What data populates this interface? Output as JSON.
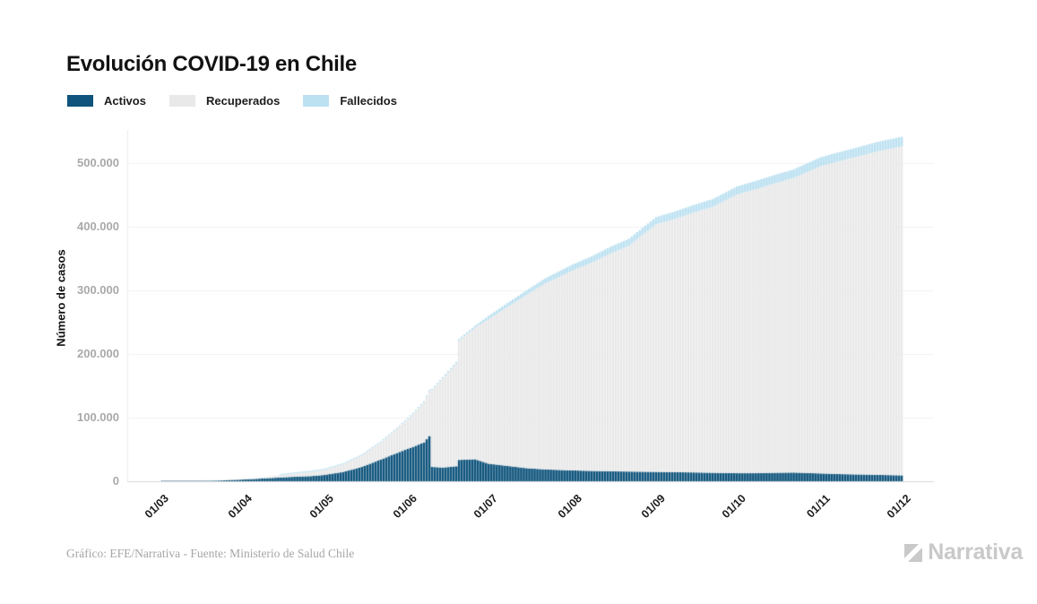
{
  "title": "Evolución COVID-19 en Chile",
  "legend": [
    {
      "key": "activos",
      "label": "Activos",
      "color": "#0f547c"
    },
    {
      "key": "recuperados",
      "label": "Recuperados",
      "color": "#e9e9e9"
    },
    {
      "key": "fallecidos",
      "label": "Fallecidos",
      "color": "#bce1f1"
    }
  ],
  "footer": {
    "credit": "Gráfico: EFE/Narrativa - Fuente: Ministerio de Salud Chile",
    "brand": "Narrativa",
    "brand_color": "#c9c9c9"
  },
  "chart_data": {
    "type": "bar",
    "stacked": true,
    "title": "Evolución COVID-19 en Chile",
    "xlabel": "",
    "ylabel": "Número de casos",
    "x_tick_labels": [
      "01/03",
      "01/04",
      "01/05",
      "01/06",
      "01/07",
      "01/08",
      "01/09",
      "01/10",
      "01/11",
      "01/12"
    ],
    "y_ticks": [
      0,
      100000,
      200000,
      300000,
      400000,
      500000
    ],
    "y_tick_labels": [
      "0",
      "100.000",
      "200.000",
      "300.000",
      "400.000",
      "500.000"
    ],
    "ylim": [
      0,
      552000
    ],
    "grid": true,
    "legend_position": "top-left",
    "series_order": [
      "activos",
      "recuperados",
      "fallecidos"
    ],
    "points": [
      {
        "date": "01/03",
        "activos": 0,
        "recuperados": 0,
        "fallecidos": 0
      },
      {
        "date": "08/03",
        "activos": 20,
        "recuperados": 0,
        "fallecidos": 0
      },
      {
        "date": "15/03",
        "activos": 150,
        "recuperados": 0,
        "fallecidos": 0
      },
      {
        "date": "22/03",
        "activos": 900,
        "recuperados": 20,
        "fallecidos": 2
      },
      {
        "date": "29/03",
        "activos": 2100,
        "recuperados": 450,
        "fallecidos": 8
      },
      {
        "date": "05/04",
        "activos": 3500,
        "recuperados": 1200,
        "fallecidos": 30
      },
      {
        "date": "12/04",
        "activos": 5200,
        "recuperados": 2600,
        "fallecidos": 80
      },
      {
        "date": "19/04",
        "activos": 6800,
        "recuperados": 4800,
        "fallecidos": 140
      },
      {
        "date": "26/04",
        "activos": 8000,
        "recuperados": 6800,
        "fallecidos": 200
      },
      {
        "date": "01/05",
        "activos": 9800,
        "recuperados": 8100,
        "fallecidos": 250
      },
      {
        "date": "08/05",
        "activos": 14500,
        "recuperados": 12000,
        "fallecidos": 320
      },
      {
        "date": "15/05",
        "activos": 22500,
        "recuperados": 18000,
        "fallecidos": 450
      },
      {
        "date": "22/05",
        "activos": 34000,
        "recuperados": 27000,
        "fallecidos": 650
      },
      {
        "date": "29/05",
        "activos": 46000,
        "recuperados": 40000,
        "fallecidos": 950
      },
      {
        "date": "03/06",
        "activos": 54000,
        "recuperados": 52000,
        "fallecidos": 1200
      },
      {
        "date": "07/06",
        "activos": 61000,
        "recuperados": 63000,
        "fallecidos": 1450
      },
      {
        "date": "09/06",
        "activos": 71000,
        "recuperados": 71000,
        "fallecidos": 1600
      },
      {
        "date": "10/06",
        "activos": 22500,
        "recuperados": 121000,
        "fallecidos": 1700
      },
      {
        "date": "14/06",
        "activos": 21500,
        "recuperados": 140000,
        "fallecidos": 2050
      },
      {
        "date": "19/06",
        "activos": 23500,
        "recuperados": 161500,
        "fallecidos": 2500
      },
      {
        "date": "20/06",
        "activos": 33500,
        "recuperados": 187500,
        "fallecidos": 2700
      },
      {
        "date": "26/06",
        "activos": 34500,
        "recuperados": 207000,
        "fallecidos": 3300
      },
      {
        "date": "01/07",
        "activos": 27500,
        "recuperados": 227500,
        "fallecidos": 5000
      },
      {
        "date": "08/07",
        "activos": 24000,
        "recuperados": 250000,
        "fallecidos": 6200
      },
      {
        "date": "15/07",
        "activos": 20500,
        "recuperados": 272500,
        "fallecidos": 7000
      },
      {
        "date": "22/07",
        "activos": 18500,
        "recuperados": 292500,
        "fallecidos": 8000
      },
      {
        "date": "01/08",
        "activos": 17000,
        "recuperados": 314000,
        "fallecidos": 9500
      },
      {
        "date": "08/08",
        "activos": 16200,
        "recuperados": 327000,
        "fallecidos": 10000
      },
      {
        "date": "15/08",
        "activos": 15600,
        "recuperados": 342000,
        "fallecidos": 10600
      },
      {
        "date": "22/08",
        "activos": 15200,
        "recuperados": 355000,
        "fallecidos": 11000
      },
      {
        "date": "01/09",
        "activos": 14600,
        "recuperados": 389000,
        "fallecidos": 11500
      },
      {
        "date": "08/09",
        "activos": 14200,
        "recuperados": 398000,
        "fallecidos": 11800
      },
      {
        "date": "15/09",
        "activos": 13800,
        "recuperados": 408500,
        "fallecidos": 12000
      },
      {
        "date": "22/09",
        "activos": 13200,
        "recuperados": 418000,
        "fallecidos": 12300
      },
      {
        "date": "01/10",
        "activos": 12600,
        "recuperados": 438000,
        "fallecidos": 12700
      },
      {
        "date": "08/10",
        "activos": 12600,
        "recuperados": 446500,
        "fallecidos": 13000
      },
      {
        "date": "15/10",
        "activos": 13200,
        "recuperados": 455000,
        "fallecidos": 13200
      },
      {
        "date": "22/10",
        "activos": 13600,
        "recuperados": 463000,
        "fallecidos": 13500
      },
      {
        "date": "01/11",
        "activos": 12200,
        "recuperados": 483000,
        "fallecidos": 14000
      },
      {
        "date": "08/11",
        "activos": 11200,
        "recuperados": 492000,
        "fallecidos": 14200
      },
      {
        "date": "15/11",
        "activos": 10600,
        "recuperados": 500000,
        "fallecidos": 14500
      },
      {
        "date": "22/11",
        "activos": 10000,
        "recuperados": 508500,
        "fallecidos": 14800
      },
      {
        "date": "01/12",
        "activos": 9200,
        "recuperados": 517000,
        "fallecidos": 15100
      }
    ]
  }
}
